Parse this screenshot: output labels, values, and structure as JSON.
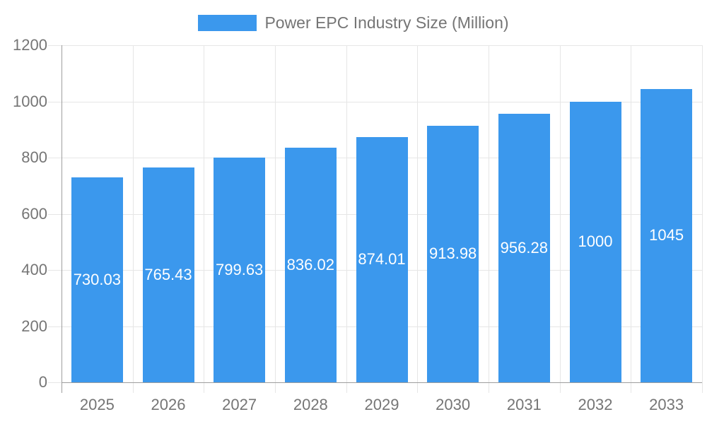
{
  "legend": {
    "label": "Power EPC Industry Size (Million)"
  },
  "colors": {
    "bar": "#3B98ED",
    "axis_text": "#757575",
    "value_label_text": "#FFFFFF",
    "gridline": "#E6E6E6",
    "axis_line": "#9E9E9E"
  },
  "chart_data": {
    "type": "bar",
    "title": "Power EPC Industry Size (Million)",
    "categories": [
      "2025",
      "2026",
      "2027",
      "2028",
      "2029",
      "2030",
      "2031",
      "2032",
      "2033"
    ],
    "values": [
      730.03,
      765.43,
      799.63,
      836.02,
      874.01,
      913.98,
      956.28,
      1000,
      1045
    ],
    "value_labels": [
      "730.03",
      "765.43",
      "799.63",
      "836.02",
      "874.01",
      "913.98",
      "956.28",
      "1000",
      "1045"
    ],
    "xlabel": "",
    "ylabel": "",
    "ylim": [
      0,
      1200
    ],
    "yticks": [
      0,
      200,
      400,
      600,
      800,
      1000,
      1200
    ],
    "grid": true,
    "legend_position": "top",
    "value_label_placement": "inside-center"
  }
}
